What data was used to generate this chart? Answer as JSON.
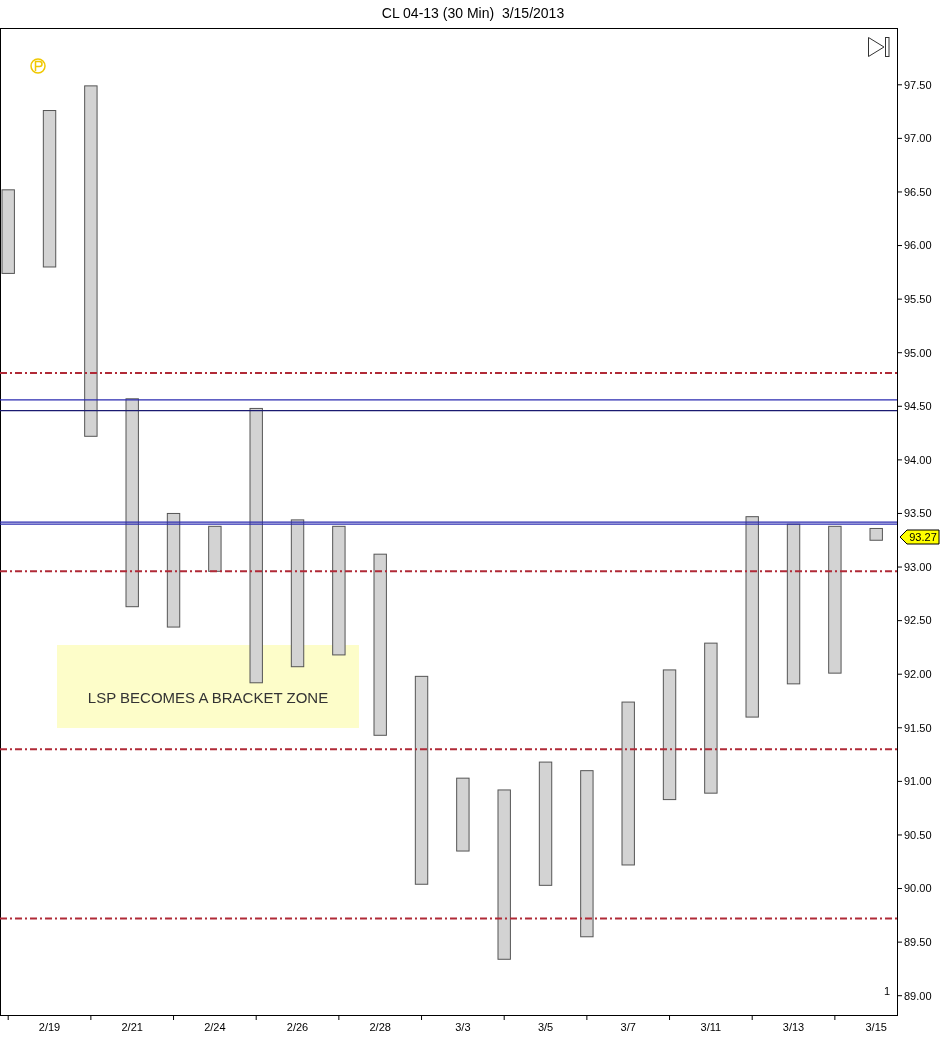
{
  "chart_data": {
    "type": "bar",
    "title": "CL 04-13 (30 Min)  3/15/2013",
    "categories": [
      null,
      "2/19",
      null,
      "2/21",
      null,
      "2/24",
      null,
      "2/26",
      null,
      "2/28",
      null,
      "3/3",
      null,
      "3/5",
      null,
      "3/7",
      null,
      "3/11",
      null,
      "3/13",
      null,
      "3/15"
    ],
    "base": [
      95.74,
      95.8,
      94.22,
      92.63,
      92.44,
      92.96,
      91.92,
      92.07,
      92.18,
      91.43,
      90.04,
      90.35,
      89.34,
      90.03,
      89.55,
      90.22,
      90.83,
      90.89,
      91.6,
      91.91,
      92.01,
      93.25
    ],
    "values": [
      0.78,
      1.46,
      3.27,
      1.94,
      1.06,
      0.42,
      2.56,
      1.37,
      1.2,
      1.69,
      1.94,
      0.68,
      1.58,
      1.15,
      1.55,
      1.52,
      1.21,
      1.4,
      1.87,
      1.49,
      1.37,
      0.11
    ],
    "color": "#d3d3d3",
    "ylim": [
      88.82,
      98.03
    ],
    "yticks": [
      {
        "value": 89,
        "label": "89.00"
      },
      {
        "value": 89.5,
        "label": "89.50"
      },
      {
        "value": 90,
        "label": "90.00"
      },
      {
        "value": 90.5,
        "label": "90.50"
      },
      {
        "value": 91,
        "label": "91.00"
      },
      {
        "value": 91.5,
        "label": "91.50"
      },
      {
        "value": 92,
        "label": "92.00"
      },
      {
        "value": 92.5,
        "label": "92.50"
      },
      {
        "value": 93,
        "label": "93.00"
      },
      {
        "value": 93.5,
        "label": "93.50"
      },
      {
        "value": 94,
        "label": "94.00"
      },
      {
        "value": 94.5,
        "label": "94.50"
      },
      {
        "value": 95,
        "label": "95.00"
      },
      {
        "value": 95.5,
        "label": "95.50"
      },
      {
        "value": 96,
        "label": "96.00"
      },
      {
        "value": 96.5,
        "label": "96.50"
      },
      {
        "value": 97,
        "label": "97.00"
      },
      {
        "value": 97.5,
        "label": "97.50"
      }
    ],
    "ref_lines": [
      {
        "axis": "y",
        "value": 94.81,
        "color": "#b02a37",
        "line_style": "dashed"
      },
      {
        "axis": "y",
        "value": 94.56,
        "color": "#2b2bb0",
        "line_style": "solid"
      },
      {
        "axis": "y",
        "value": 94.46,
        "color": "#1a1a70",
        "line_style": "solid"
      },
      {
        "axis": "y",
        "value": 93.42,
        "color": "#2b2bb0",
        "line_style": "solid"
      },
      {
        "axis": "y",
        "value": 93.4,
        "color": "#2b2bb0",
        "line_style": "solid"
      },
      {
        "axis": "y",
        "value": 92.96,
        "color": "#b02a37",
        "line_style": "dashed"
      },
      {
        "axis": "y",
        "value": 91.3,
        "color": "#b02a37",
        "line_style": "dashed"
      },
      {
        "axis": "y",
        "value": 89.72,
        "color": "#b02a37",
        "line_style": "dashed"
      }
    ],
    "annotations": [
      "LSP BECOMES A BRACKET ZONE",
      "1",
      "93.27"
    ]
  }
}
